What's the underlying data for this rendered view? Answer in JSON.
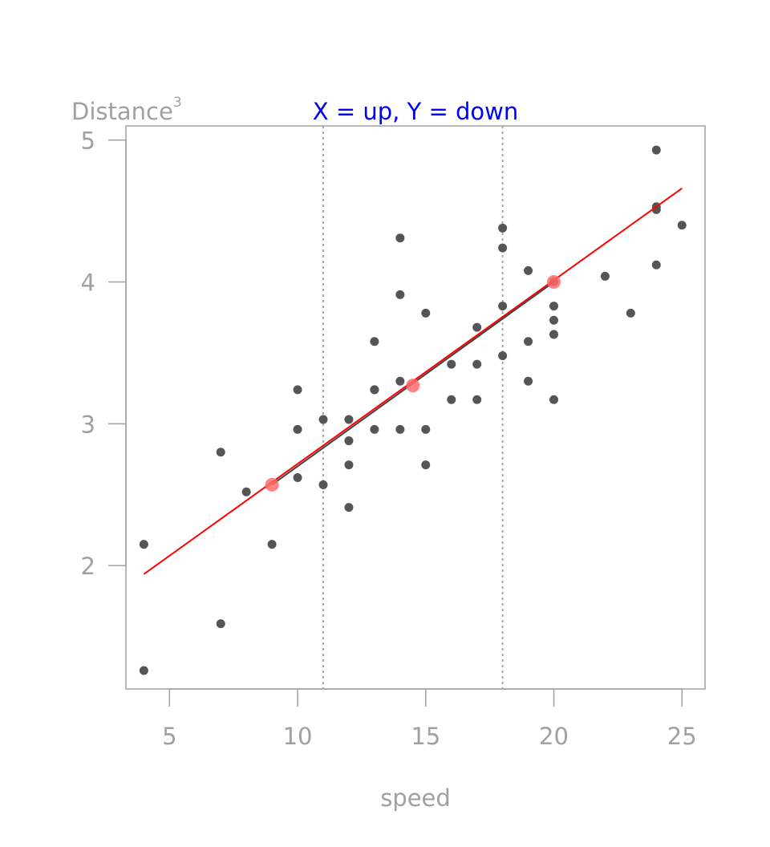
{
  "chart_data": {
    "type": "scatter",
    "title": "X = up, Y = down",
    "title_color": "#0000ff",
    "xlabel": "speed",
    "ylabel": "Distance",
    "ylabel_superscript": "3",
    "xlim": [
      3.3,
      25.9
    ],
    "ylim": [
      1.13,
      5.1
    ],
    "xticks": [
      5,
      10,
      15,
      20,
      25
    ],
    "yticks": [
      2,
      3,
      4,
      5
    ],
    "grid": false,
    "axis_color": "#a0a0a0",
    "point_color": "#555555",
    "points": [
      {
        "x": 4,
        "y": 1.26
      },
      {
        "x": 4,
        "y": 2.15
      },
      {
        "x": 7,
        "y": 1.59
      },
      {
        "x": 7,
        "y": 2.8
      },
      {
        "x": 8,
        "y": 2.52
      },
      {
        "x": 9,
        "y": 2.15
      },
      {
        "x": 10,
        "y": 2.62
      },
      {
        "x": 10,
        "y": 2.96
      },
      {
        "x": 10,
        "y": 3.24
      },
      {
        "x": 11,
        "y": 2.57
      },
      {
        "x": 11,
        "y": 3.03
      },
      {
        "x": 12,
        "y": 2.41
      },
      {
        "x": 12,
        "y": 2.71
      },
      {
        "x": 12,
        "y": 2.88
      },
      {
        "x": 12,
        "y": 3.03
      },
      {
        "x": 13,
        "y": 2.96
      },
      {
        "x": 13,
        "y": 3.24
      },
      {
        "x": 13,
        "y": 3.24
      },
      {
        "x": 13,
        "y": 3.58
      },
      {
        "x": 14,
        "y": 2.96
      },
      {
        "x": 14,
        "y": 3.3
      },
      {
        "x": 14,
        "y": 3.91
      },
      {
        "x": 14,
        "y": 4.31
      },
      {
        "x": 15,
        "y": 2.71
      },
      {
        "x": 15,
        "y": 2.96
      },
      {
        "x": 15,
        "y": 3.78
      },
      {
        "x": 16,
        "y": 3.17
      },
      {
        "x": 16,
        "y": 3.42
      },
      {
        "x": 17,
        "y": 3.17
      },
      {
        "x": 17,
        "y": 3.42
      },
      {
        "x": 17,
        "y": 3.68
      },
      {
        "x": 18,
        "y": 3.48
      },
      {
        "x": 18,
        "y": 3.83
      },
      {
        "x": 18,
        "y": 4.24
      },
      {
        "x": 18,
        "y": 4.38
      },
      {
        "x": 19,
        "y": 3.3
      },
      {
        "x": 19,
        "y": 3.58
      },
      {
        "x": 19,
        "y": 4.08
      },
      {
        "x": 20,
        "y": 3.17
      },
      {
        "x": 20,
        "y": 3.63
      },
      {
        "x": 20,
        "y": 3.73
      },
      {
        "x": 20,
        "y": 3.83
      },
      {
        "x": 20,
        "y": 4.0
      },
      {
        "x": 22,
        "y": 4.04
      },
      {
        "x": 23,
        "y": 3.78
      },
      {
        "x": 24,
        "y": 4.12
      },
      {
        "x": 24,
        "y": 4.51
      },
      {
        "x": 24,
        "y": 4.53
      },
      {
        "x": 24,
        "y": 4.93
      },
      {
        "x": 25,
        "y": 4.4
      }
    ],
    "fit_line": {
      "x": [
        4,
        25
      ],
      "y": [
        1.94,
        4.66
      ],
      "color": "#ff0000"
    },
    "segment_line": {
      "x": [
        9,
        20
      ],
      "y": [
        2.57,
        4.0
      ],
      "color": "#444444"
    },
    "vertical_lines": [
      {
        "x": 11,
        "color": "#a0a0a0"
      },
      {
        "x": 18,
        "color": "#a0a0a0"
      }
    ],
    "highlight_points": [
      {
        "x": 9,
        "y": 2.57
      },
      {
        "x": 14.5,
        "y": 3.27
      },
      {
        "x": 20,
        "y": 4.0
      }
    ],
    "highlight_color": "#ff6b6b"
  }
}
